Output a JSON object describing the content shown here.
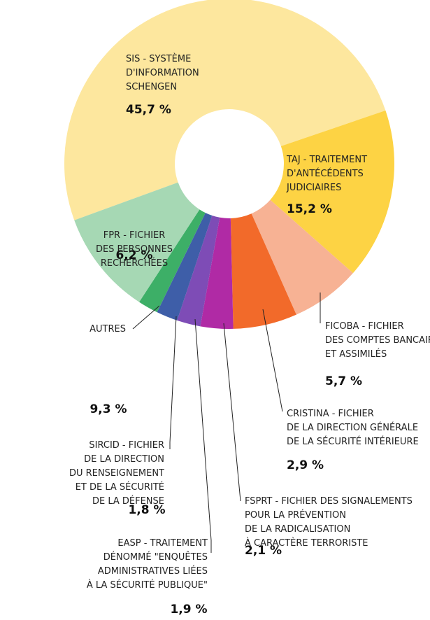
{
  "chart_data": {
    "type": "donut",
    "categories": [
      "SIS - SYSTÈME\nD'INFORMATION\nSCHENGEN",
      "TAJ - TRAITEMENT\nD'ANTÉCÉDENTS\nJUDICIAIRES",
      "FPR - FICHIER\nDES PERSONNES\nRECHERCHÉES",
      "FICOBA - FICHIER\nDES COMPTES BANCAIRES\nET ASSIMILÉS",
      "CRISTINA - FICHIER\nDE LA DIRECTION GÉNÉRALE\nDE LA SÉCURITÉ INTÉRIEURE",
      "FSPRT - FICHIER DES SIGNALEMENTS\nPOUR LA PRÉVENTION\nDE LA RADICALISATION\nÀ CARACTÈRE TERRORISTE",
      "EASP - TRAITEMENT\nDÉNOMMÉ \"ENQUÊTES\nADMINISTRATIVES LIÉES\nÀ LA SÉCURITÉ PUBLIQUE\"",
      "SIRCID - FICHIER\nDE LA DIRECTION\nDU RENSEIGNEMENT\nET DE LA SÉCURITÉ\nDE LA DÉFENSE",
      "AUTRES"
    ],
    "values": [
      45.7,
      15.2,
      6.2,
      5.7,
      2.9,
      2.1,
      1.9,
      1.8,
      9.3
    ],
    "value_labels": [
      "45,7 %",
      "15,2 %",
      "6,2 %",
      "5,7 %",
      "2,9 %",
      "2,1 %",
      "1,9 %",
      "1,8 %",
      "9,3 %"
    ],
    "colors": [
      "#fde79e",
      "#fdd344",
      "#f7b294",
      "#f26a2a",
      "#b02aa5",
      "#7e4cb6",
      "#3e5ea8",
      "#3daf67",
      "#a6d8b4"
    ]
  }
}
